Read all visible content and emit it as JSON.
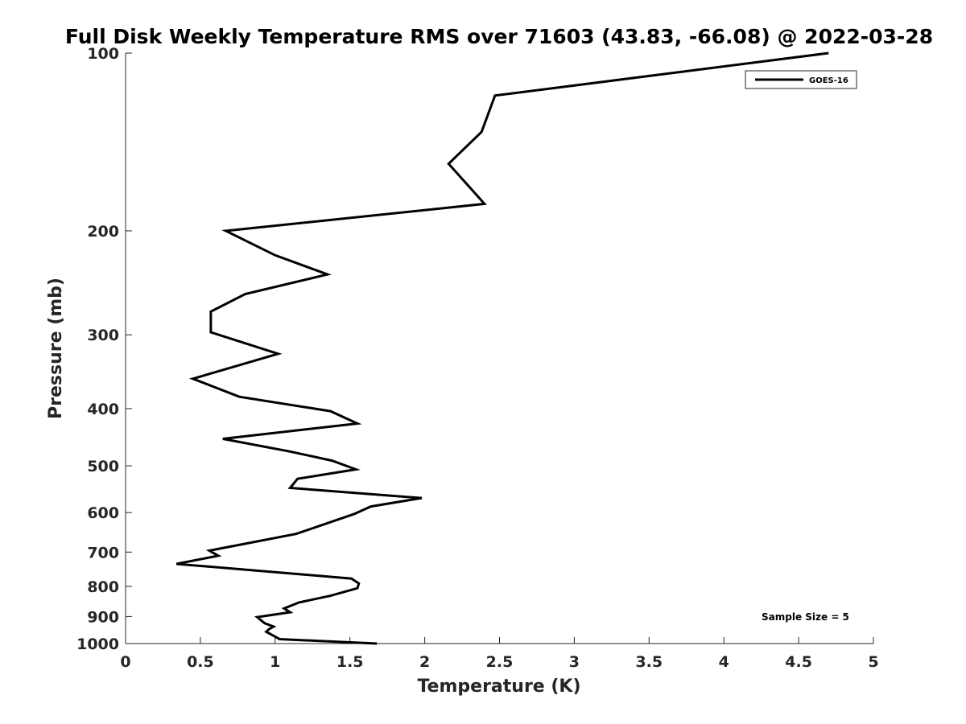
{
  "chart_data": {
    "type": "line",
    "title": "Full Disk Weekly Temperature RMS over 71603 (43.83, -66.08) @ 2022-03-28",
    "xlabel": "Temperature (K)",
    "ylabel": "Pressure (mb)",
    "xlim": [
      0,
      5
    ],
    "ylim": [
      1000,
      100
    ],
    "yscale": "log",
    "x_ticks": [
      0,
      0.5,
      1,
      1.5,
      2,
      2.5,
      3,
      3.5,
      4,
      4.5,
      5
    ],
    "x_tick_labels": [
      "0",
      "0.5",
      "1",
      "1.5",
      "2",
      "2.5",
      "3",
      "3.5",
      "4",
      "4.5",
      "5"
    ],
    "y_ticks": [
      100,
      200,
      300,
      400,
      500,
      600,
      700,
      800,
      900,
      1000
    ],
    "y_tick_labels": [
      "100",
      "200",
      "300",
      "400",
      "500",
      "600",
      "700",
      "800",
      "900",
      "1000"
    ],
    "grid": false,
    "legend_position": "top-right",
    "annotation": "Sample Size = 5",
    "series": [
      {
        "name": "GOES-16",
        "color": "#000000",
        "points": [
          [
            4.7,
            100
          ],
          [
            2.47,
            118
          ],
          [
            2.38,
            136
          ],
          [
            2.16,
            154
          ],
          [
            2.4,
            180
          ],
          [
            0.67,
            200
          ],
          [
            1.0,
            220
          ],
          [
            1.35,
            237
          ],
          [
            0.8,
            256
          ],
          [
            0.57,
            274
          ],
          [
            0.57,
            297
          ],
          [
            1.02,
            323
          ],
          [
            0.45,
            356
          ],
          [
            0.76,
            382
          ],
          [
            1.37,
            404
          ],
          [
            1.55,
            424
          ],
          [
            0.65,
            450
          ],
          [
            1.1,
            473
          ],
          [
            1.38,
            490
          ],
          [
            1.54,
            507
          ],
          [
            1.15,
            526
          ],
          [
            1.1,
            545
          ],
          [
            1.98,
            567
          ],
          [
            1.64,
            586
          ],
          [
            1.53,
            603
          ],
          [
            1.14,
            652
          ],
          [
            0.56,
            696
          ],
          [
            0.62,
            710
          ],
          [
            0.34,
            733
          ],
          [
            1.51,
            776
          ],
          [
            1.56,
            791
          ],
          [
            1.55,
            806
          ],
          [
            1.37,
            830
          ],
          [
            1.16,
            852
          ],
          [
            1.06,
            872
          ],
          [
            1.1,
            885
          ],
          [
            0.88,
            902
          ],
          [
            0.93,
            924
          ],
          [
            0.99,
            936
          ],
          [
            0.96,
            945
          ],
          [
            0.94,
            955
          ],
          [
            1.03,
            983
          ],
          [
            1.68,
            1000
          ]
        ]
      }
    ]
  }
}
